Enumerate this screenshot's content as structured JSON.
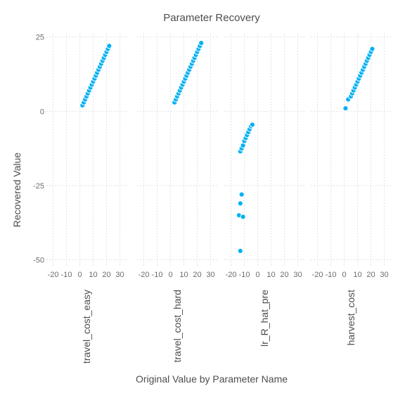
{
  "chart_data": {
    "type": "scatter",
    "title": "Parameter Recovery",
    "xlabel": "Original Value by Parameter Name",
    "ylabel": "Recovered Value",
    "xlim": [
      -25,
      35
    ],
    "ylim": [
      -52,
      28
    ],
    "x_ticks": [
      -20,
      -10,
      0,
      10,
      20,
      30
    ],
    "y_ticks": [
      25,
      0,
      -25,
      -50
    ],
    "grid": true,
    "point_color": "#00b1f3",
    "panels": [
      {
        "name": "travel_cost_easy",
        "points": [
          [
            2,
            2
          ],
          [
            3,
            3
          ],
          [
            4,
            4
          ],
          [
            5,
            5
          ],
          [
            6,
            6
          ],
          [
            7,
            7
          ],
          [
            8,
            8
          ],
          [
            9,
            9
          ],
          [
            10,
            10
          ],
          [
            11,
            11
          ],
          [
            12,
            12
          ],
          [
            13,
            13
          ],
          [
            14,
            14
          ],
          [
            15,
            15
          ],
          [
            16,
            16
          ],
          [
            17,
            17
          ],
          [
            18,
            18
          ],
          [
            19,
            19
          ],
          [
            20,
            20
          ],
          [
            21,
            21
          ],
          [
            22,
            22
          ]
        ]
      },
      {
        "name": "travel_cost_hard",
        "points": [
          [
            3,
            3
          ],
          [
            4,
            4
          ],
          [
            5,
            5
          ],
          [
            6,
            6
          ],
          [
            7,
            7
          ],
          [
            8,
            8
          ],
          [
            9,
            9
          ],
          [
            10,
            10
          ],
          [
            11,
            11
          ],
          [
            12,
            12
          ],
          [
            13,
            13
          ],
          [
            14,
            14
          ],
          [
            15,
            15
          ],
          [
            16,
            16
          ],
          [
            17,
            17
          ],
          [
            18,
            18
          ],
          [
            19,
            19
          ],
          [
            20,
            20
          ],
          [
            21,
            21
          ],
          [
            22,
            22
          ],
          [
            23,
            23
          ]
        ]
      },
      {
        "name": "lr_R_hat_pre",
        "points": [
          [
            -13,
            -13.5
          ],
          [
            -12,
            -12.5
          ],
          [
            -11,
            -11.5
          ],
          [
            -10,
            -10
          ],
          [
            -9,
            -9
          ],
          [
            -8,
            -8
          ],
          [
            -7,
            -7
          ],
          [
            -6,
            -6
          ],
          [
            -5,
            -5
          ],
          [
            -4,
            -4.5
          ],
          [
            -12,
            -28
          ],
          [
            -13,
            -31
          ],
          [
            -14,
            -35
          ],
          [
            -11,
            -35.5
          ],
          [
            -13,
            -47
          ]
        ]
      },
      {
        "name": "harvest_cost",
        "points": [
          [
            1,
            1
          ],
          [
            3,
            4
          ],
          [
            5,
            5
          ],
          [
            6,
            6
          ],
          [
            7,
            7
          ],
          [
            8,
            8
          ],
          [
            9,
            9
          ],
          [
            10,
            10
          ],
          [
            11,
            11
          ],
          [
            12,
            12
          ],
          [
            13,
            13
          ],
          [
            14,
            14
          ],
          [
            15,
            15
          ],
          [
            16,
            16
          ],
          [
            17,
            17
          ],
          [
            18,
            18
          ],
          [
            19,
            19
          ],
          [
            20,
            20
          ],
          [
            21,
            21
          ]
        ]
      }
    ]
  }
}
